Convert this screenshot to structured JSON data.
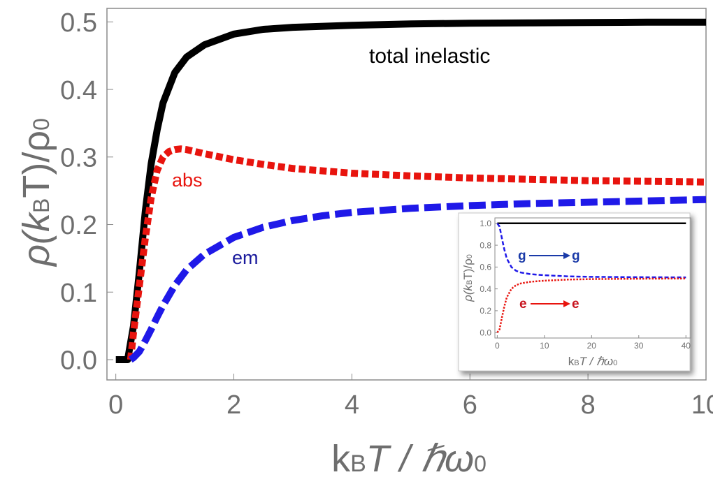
{
  "chart_data": [
    {
      "type": "line",
      "name": "main",
      "xlabel_main": "k",
      "xlabel_sub": "B",
      "xlabel_rest": "T / ℏω",
      "xlabel_sub2": "0",
      "ylabel_pre": "ρ(k",
      "ylabel_sub": "B",
      "ylabel_mid": "T)/ρ",
      "ylabel_sub2": "0",
      "xlim": [
        -0.15,
        10
      ],
      "ylim": [
        -0.03,
        0.52
      ],
      "xticks": [
        0,
        2,
        4,
        6,
        8,
        10
      ],
      "xtick_labels": [
        "0",
        "2",
        "4",
        "6",
        "8",
        "10"
      ],
      "yticks": [
        0.0,
        0.1,
        0.2,
        0.3,
        0.4,
        0.5
      ],
      "ytick_labels": [
        "0.0",
        "0.1",
        "0.2",
        "0.3",
        "0.4",
        "0.5"
      ],
      "series": [
        {
          "name": "total inelastic",
          "color": "#000000",
          "style": "solid",
          "x": [
            0.0,
            0.2,
            0.3,
            0.4,
            0.5,
            0.6,
            0.7,
            0.8,
            1.0,
            1.2,
            1.5,
            2.0,
            2.5,
            3.0,
            4.0,
            5.0,
            6.0,
            7.0,
            8.0,
            9.0,
            10.0
          ],
          "y": [
            0.0,
            0.0,
            0.05,
            0.13,
            0.22,
            0.29,
            0.34,
            0.38,
            0.425,
            0.448,
            0.466,
            0.482,
            0.489,
            0.492,
            0.495,
            0.497,
            0.498,
            0.4985,
            0.499,
            0.4995,
            0.4995
          ]
        },
        {
          "name": "abs",
          "color": "#e8140e",
          "style": "dotted",
          "x": [
            0.25,
            0.3,
            0.4,
            0.5,
            0.6,
            0.7,
            0.8,
            0.9,
            1.0,
            1.1,
            1.2,
            1.5,
            2.0,
            2.5,
            3.0,
            4.0,
            5.0,
            6.0,
            7.0,
            8.0,
            9.0,
            10.0
          ],
          "y": [
            0.0,
            0.04,
            0.11,
            0.18,
            0.24,
            0.28,
            0.3,
            0.308,
            0.311,
            0.312,
            0.311,
            0.305,
            0.296,
            0.289,
            0.283,
            0.276,
            0.272,
            0.269,
            0.267,
            0.265,
            0.264,
            0.263
          ]
        },
        {
          "name": "em",
          "color": "#1f19e8",
          "style": "dashed",
          "x": [
            0.25,
            0.3,
            0.4,
            0.5,
            0.6,
            0.7,
            0.8,
            1.0,
            1.2,
            1.5,
            2.0,
            2.5,
            3.0,
            3.5,
            4.0,
            5.0,
            6.0,
            7.0,
            8.0,
            9.0,
            10.0
          ],
          "y": [
            0.0,
            0.003,
            0.012,
            0.028,
            0.045,
            0.063,
            0.08,
            0.11,
            0.133,
            0.156,
            0.181,
            0.196,
            0.206,
            0.213,
            0.218,
            0.224,
            0.228,
            0.231,
            0.233,
            0.235,
            0.237
          ]
        }
      ],
      "annotations": [
        {
          "text": "total inelastic",
          "color": "#000000"
        },
        {
          "text": "abs",
          "color": "#e8140e"
        },
        {
          "text": "em",
          "color": "#1a1a9c"
        }
      ]
    },
    {
      "type": "line",
      "name": "inset",
      "xlabel_main": "k",
      "xlabel_sub": "B",
      "xlabel_rest": "T / ℏω",
      "xlabel_sub2": "0",
      "ylabel_pre": "ρ(k",
      "ylabel_sub": "B",
      "ylabel_mid": "T)/ρ",
      "ylabel_sub2": "0",
      "xlim": [
        -0.5,
        41
      ],
      "ylim": [
        -0.05,
        1.05
      ],
      "xticks": [
        0,
        10,
        20,
        30,
        40
      ],
      "xtick_labels": [
        "0",
        "10",
        "20",
        "30",
        "40"
      ],
      "yticks": [
        0.0,
        0.2,
        0.4,
        0.6,
        0.8,
        1.0
      ],
      "ytick_labels": [
        "0.0",
        "0.2",
        "0.4",
        "0.6",
        "0.8",
        "1.0"
      ],
      "series": [
        {
          "name": "total",
          "color": "#000000",
          "style": "solid",
          "x": [
            0,
            1,
            10,
            20,
            30,
            40
          ],
          "y": [
            1.0,
            1.0,
            1.0,
            1.0,
            1.0,
            1.0
          ]
        },
        {
          "name": "g to g",
          "color": "#1f19e8",
          "style": "dashed",
          "x": [
            0,
            0.5,
            1,
            1.5,
            2,
            3,
            4,
            5,
            7,
            10,
            15,
            20,
            30,
            40
          ],
          "y": [
            1.0,
            0.97,
            0.86,
            0.76,
            0.68,
            0.6,
            0.565,
            0.55,
            0.535,
            0.525,
            0.515,
            0.51,
            0.507,
            0.505
          ]
        },
        {
          "name": "e to e",
          "color": "#e8140e",
          "style": "dotted",
          "x": [
            0,
            0.5,
            1,
            1.5,
            2,
            3,
            4,
            5,
            7,
            10,
            15,
            20,
            30,
            40
          ],
          "y": [
            0.0,
            0.03,
            0.14,
            0.24,
            0.32,
            0.4,
            0.435,
            0.45,
            0.465,
            0.475,
            0.485,
            0.49,
            0.493,
            0.495
          ]
        }
      ],
      "annotations": [
        {
          "from": "g",
          "to": "g",
          "color": "#1a3aa8"
        },
        {
          "from": "e",
          "to": "e",
          "color": "#e8140e"
        }
      ]
    }
  ]
}
